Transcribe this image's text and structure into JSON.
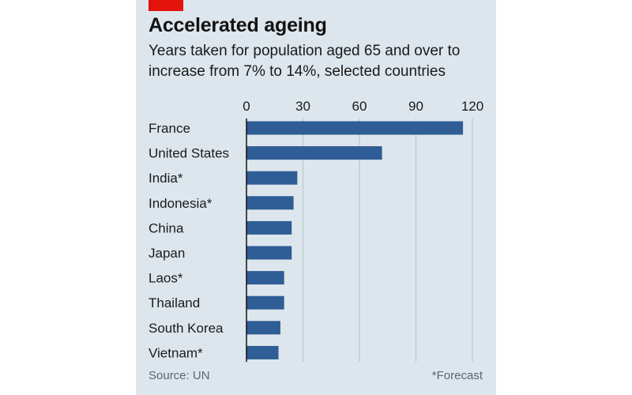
{
  "header": {
    "title": "Accelerated ageing",
    "subtitle": "Years taken for population aged 65 and over to increase from 7% to 14%, selected countries"
  },
  "footer": {
    "source": "Source: UN",
    "note": "*Forecast"
  },
  "colors": {
    "bar": "#2f5d95",
    "panel": "#dde6ec",
    "accent": "#e3120b"
  },
  "chart_data": {
    "type": "bar",
    "orientation": "horizontal",
    "categories": [
      "France",
      "United States",
      "India*",
      "Indonesia*",
      "China",
      "Japan",
      "Laos*",
      "Thailand",
      "South Korea",
      "Vietnam*"
    ],
    "values": [
      115,
      72,
      27,
      25,
      24,
      24,
      20,
      20,
      18,
      17
    ],
    "xlim": [
      0,
      120
    ],
    "xticks": [
      0,
      30,
      60,
      90,
      120
    ],
    "grid": true
  }
}
